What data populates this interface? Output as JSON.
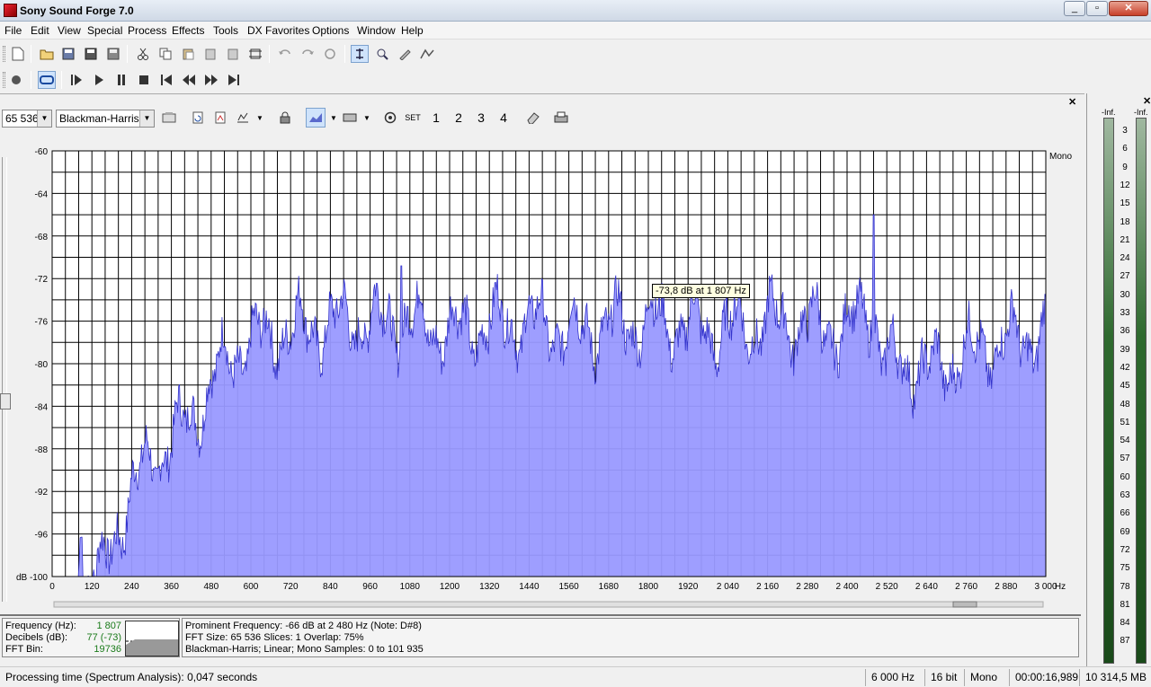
{
  "window": {
    "title": "Sony Sound Forge 7.0"
  },
  "menu": [
    "File",
    "Edit",
    "View",
    "Special",
    "Process",
    "Effects",
    "Tools",
    "DX Favorites",
    "Options",
    "Window",
    "Help"
  ],
  "spectrum_toolbar": {
    "fft_size": "65 536",
    "window_fn": "Blackman-Harris",
    "set_label": "SET",
    "slot_labels": [
      "1",
      "2",
      "3",
      "4"
    ]
  },
  "tooltip": "-73,8 dB at 1 807 Hz",
  "chart_data": {
    "type": "area",
    "channel_label": "Mono",
    "x_unit": "Hz",
    "y_unit_label": "dB",
    "xlim": [
      0,
      3000
    ],
    "ylim": [
      -100,
      -60
    ],
    "x_ticks": [
      "0",
      "120",
      "240",
      "360",
      "480",
      "600",
      "720",
      "840",
      "960",
      "1080",
      "1200",
      "1320",
      "1440",
      "1560",
      "1680",
      "1800",
      "1920",
      "2 040",
      "2 160",
      "2 280",
      "2 400",
      "2 520",
      "2 640",
      "2 760",
      "2 880",
      "3 000"
    ],
    "y_ticks": [
      "-60",
      "-64",
      "-68",
      "-72",
      "-76",
      "-80",
      "-84",
      "-88",
      "-92",
      "-96",
      "dB -100"
    ],
    "envelope_x": [
      0,
      80,
      85,
      88,
      90,
      92,
      95,
      150,
      160,
      180,
      200,
      240,
      300,
      400,
      480,
      520,
      560,
      600,
      700,
      900,
      1080,
      1200,
      1400,
      1600,
      1800,
      2000,
      2200,
      2400,
      2480,
      2500,
      2520,
      2600,
      2640,
      2700,
      2760,
      2880,
      3000
    ],
    "envelope_y": [
      -100,
      -100,
      -96,
      -99,
      -100,
      -100,
      -100,
      -100,
      -99,
      -97,
      -95,
      -92,
      -89,
      -86,
      -82,
      -80,
      -79,
      -78,
      -77,
      -76,
      -76,
      -77,
      -76,
      -77,
      -76,
      -77,
      -76,
      -77,
      -74,
      -79,
      -80,
      -80,
      -81,
      -80,
      -79,
      -78,
      -77
    ],
    "peaks": [
      {
        "x": 89,
        "y": -96.3
      },
      {
        "x": 1053,
        "y": -70.8
      },
      {
        "x": 2480,
        "y": -66
      }
    ]
  },
  "info": {
    "freq_label": "Frequency (Hz):",
    "freq_value": "1 807",
    "db_label": "Decibels (dB):",
    "db_value": "77 (-73)",
    "bin_label": "FFT Bin:",
    "bin_value": "19736",
    "line1": "Prominent Frequency: -66 dB at 2 480 Hz (Note: D#8)",
    "line2": "FFT Size: 65 536   Slices: 1   Overlap: 75%",
    "line3": "Blackman-Harris; Linear; Mono   Samples: 0 to 101 935"
  },
  "status": {
    "processing": "Processing time (Spectrum Analysis): 0,047 seconds",
    "rate": "6 000 Hz",
    "bits": "16 bit",
    "channels": "Mono",
    "time": "00:00:16,989",
    "disk": "10 314,5 MB"
  },
  "meters": {
    "inf_label": "-Inf.",
    "scale": [
      "3",
      "6",
      "9",
      "12",
      "15",
      "18",
      "21",
      "24",
      "27",
      "30",
      "33",
      "36",
      "39",
      "42",
      "45",
      "48",
      "51",
      "54",
      "57",
      "60",
      "63",
      "66",
      "69",
      "72",
      "75",
      "78",
      "81",
      "84",
      "87"
    ]
  },
  "colors": {
    "fill": "#9999ff",
    "line": "#3333cc",
    "accent": "#8b0000"
  }
}
